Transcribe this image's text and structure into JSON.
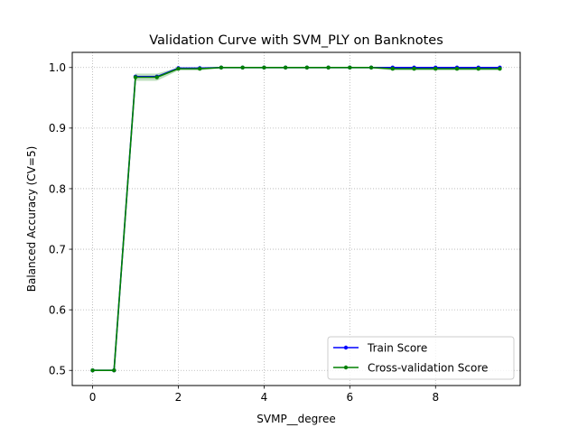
{
  "chart_data": {
    "type": "line",
    "title": "Validation Curve with SVM_PLY on Banknotes",
    "xlabel": "SVMP__degree",
    "ylabel": "Balanced Accuracy (CV=5)",
    "xlim": [
      -0.475,
      9.975
    ],
    "ylim": [
      0.475,
      1.025
    ],
    "xticks": [
      0,
      2,
      4,
      6,
      8
    ],
    "xtick_labels": [
      "0",
      "2",
      "4",
      "6",
      "8"
    ],
    "yticks": [
      0.5,
      0.6,
      0.7,
      0.8,
      0.9,
      1.0
    ],
    "ytick_labels": [
      "0.5",
      "0.6",
      "0.7",
      "0.8",
      "0.9",
      "1.0"
    ],
    "grid": true,
    "legend_position": "lower-right",
    "x": [
      0,
      0.5,
      1,
      1.5,
      2,
      2.5,
      3,
      3.5,
      4,
      4.5,
      5,
      5.5,
      6,
      6.5,
      7,
      7.5,
      8,
      8.5,
      9,
      9.5
    ],
    "series": [
      {
        "name": "Train Score",
        "color": "#0000ff",
        "values": [
          0.5,
          0.5,
          0.985,
          0.985,
          0.999,
          0.999,
          1.0,
          1.0,
          1.0,
          1.0,
          1.0,
          1.0,
          1.0,
          1.0,
          1.0,
          1.0,
          1.0,
          1.0,
          1.0,
          1.0
        ]
      },
      {
        "name": "Cross-validation Score",
        "color": "#008000",
        "values": [
          0.5,
          0.5,
          0.984,
          0.984,
          0.998,
          0.998,
          1.0,
          1.0,
          1.0,
          1.0,
          1.0,
          1.0,
          1.0,
          1.0,
          0.998,
          0.998,
          0.998,
          0.998,
          0.998,
          0.998
        ],
        "band_low": [
          0.5,
          0.5,
          0.978,
          0.978,
          0.995,
          0.995,
          0.999,
          0.999,
          0.999,
          0.999,
          0.999,
          0.999,
          0.999,
          0.999,
          0.995,
          0.995,
          0.995,
          0.995,
          0.995,
          0.995
        ],
        "band_high": [
          0.5,
          0.5,
          0.99,
          0.99,
          1.0,
          1.0,
          1.0,
          1.0,
          1.0,
          1.0,
          1.0,
          1.0,
          1.0,
          1.0,
          1.0,
          1.0,
          1.0,
          1.0,
          1.0,
          1.0
        ]
      }
    ]
  }
}
